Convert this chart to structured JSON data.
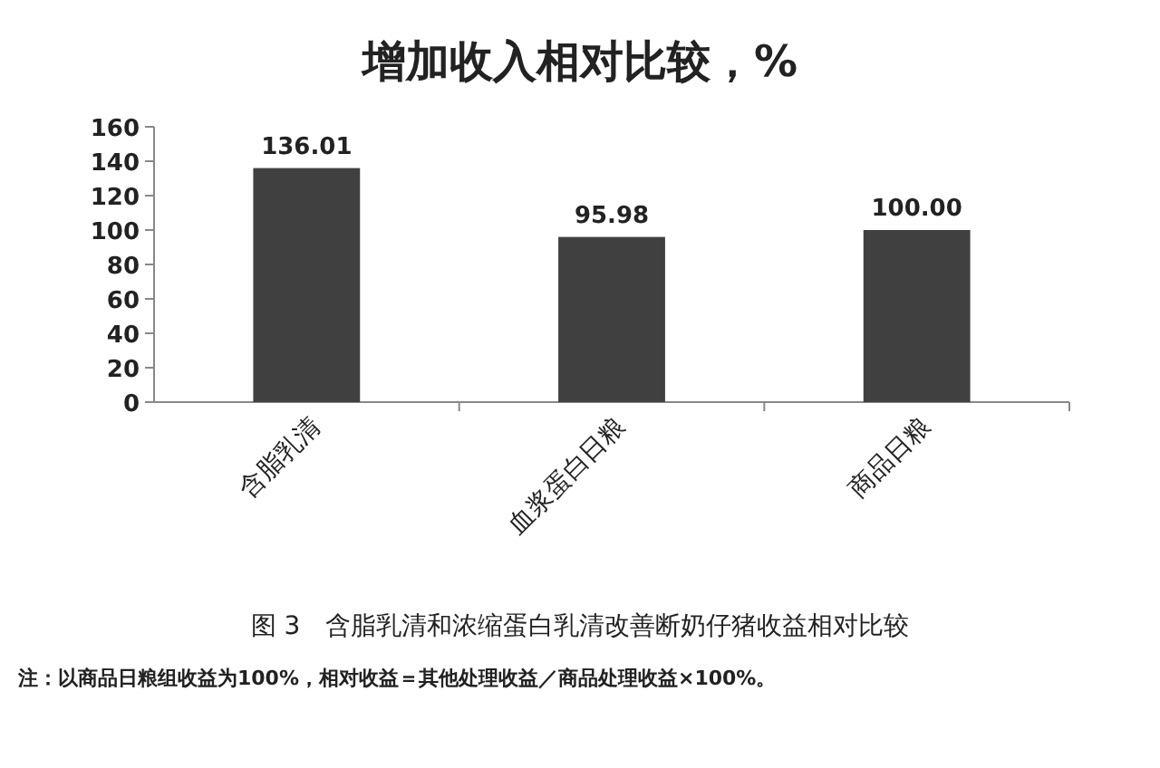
{
  "chart_data": {
    "type": "bar",
    "title": "增加收入相对比较，%",
    "categories": [
      "含脂乳清",
      "血浆蛋白日粮",
      "商品日粮"
    ],
    "values": [
      136.01,
      95.98,
      100.0
    ],
    "value_labels": [
      "136.01",
      "95.98",
      "100.00"
    ],
    "color": "#404040",
    "ylim": [
      0,
      160
    ],
    "yticks": [
      0,
      20,
      40,
      60,
      80,
      100,
      120,
      140,
      160
    ],
    "annotations": [
      "图 3　含脂乳清和浓缩蛋白乳清改善断奶仔猪收益相对比较",
      "注：以商品日粮组收益为100%，相对收益＝其他处理收益／商品处理收益×100%。"
    ]
  }
}
